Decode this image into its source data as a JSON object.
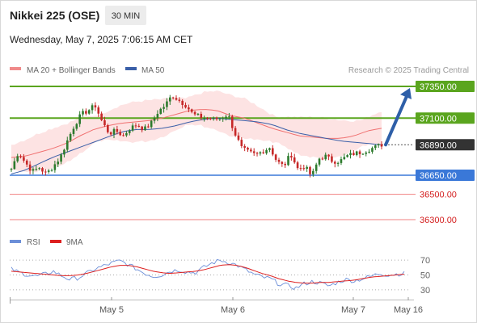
{
  "header": {
    "instrument": "Nikkei 225 (OSE)",
    "timeframe": "30 MIN",
    "datetime": "Wednesday, May 7, 2025 7:06:15 AM CET"
  },
  "legend": {
    "ma20_label": "MA 20 + Bollinger Bands",
    "ma50_label": "MA 50",
    "credit": "Research © 2025 Trading Central"
  },
  "colors": {
    "up_candle": "#2d7a2d",
    "down_candle": "#c62828",
    "ma20": "#f07070",
    "ma50": "#3a5fa8",
    "bollinger_fill": "#fde3e3",
    "resistance": "#5aa51e",
    "pivot": "#3a78d8",
    "support": "#f08080",
    "last_price_tag": "#333333",
    "arrow": "#2e5fa8",
    "rsi": "#6c8fd8",
    "rsi_ma": "#dd1f1f"
  },
  "chart_data": [
    {
      "type": "candlestick",
      "title": "Nikkei 225 (OSE)",
      "interval": "30 MIN",
      "x_labels": [
        "May 5",
        "May 6",
        "May 7",
        "May 16"
      ],
      "y_range": [
        36150,
        37400
      ],
      "levels": [
        {
          "value": 37350,
          "label": "37350.00",
          "kind": "resistance"
        },
        {
          "value": 37100,
          "label": "37100.00",
          "kind": "resistance"
        },
        {
          "value": 36890,
          "label": "36890.00",
          "kind": "last"
        },
        {
          "value": 36650,
          "label": "36650.00",
          "kind": "pivot"
        },
        {
          "value": 36500,
          "label": "36500.00",
          "kind": "support"
        },
        {
          "value": 36300,
          "label": "36300.00",
          "kind": "support"
        }
      ],
      "price_path": [
        36700,
        36830,
        36750,
        36680,
        36710,
        36660,
        36720,
        36790,
        36920,
        37040,
        37130,
        37160,
        37200,
        37070,
        36980,
        37000,
        36960,
        37020,
        37050,
        37010,
        37060,
        37150,
        37200,
        37280,
        37240,
        37200,
        37130,
        37110,
        37100,
        37090,
        37100,
        37130,
        36980,
        36860,
        36830,
        36810,
        36840,
        36870,
        36760,
        36720,
        36820,
        36700,
        36720,
        36640,
        36780,
        36800,
        36760,
        36760,
        36800,
        36820,
        36830,
        36850,
        36870,
        36890
      ],
      "ma20_path": [
        36790,
        36800,
        36830,
        36860,
        36900,
        36960,
        37010,
        37040,
        37060,
        37070,
        37080,
        37100,
        37130,
        37160,
        37170,
        37160,
        37120,
        37100,
        37060,
        37020,
        36990,
        36960,
        36950,
        36940,
        36940,
        36960,
        37000,
        37020
      ],
      "ma50_path": [
        36660,
        36690,
        36740,
        36790,
        36830,
        36870,
        36910,
        36950,
        36990,
        37010,
        37010,
        37020,
        37040,
        37070,
        37090,
        37100,
        37090,
        37080,
        37070,
        37050,
        37010,
        36980,
        36960,
        36940,
        36920,
        36910,
        36900,
        36890
      ]
    },
    {
      "type": "line",
      "title": "RSI",
      "series_names": [
        "RSI",
        "9MA"
      ],
      "y_ticks": [
        70,
        50,
        30
      ],
      "y_range": [
        20,
        80
      ],
      "rsi": [
        58,
        53,
        50,
        48,
        51,
        55,
        49,
        44,
        46,
        52,
        58,
        62,
        66,
        69,
        64,
        58,
        52,
        48,
        50,
        55,
        57,
        54,
        53,
        60,
        66,
        70,
        67,
        63,
        57,
        51,
        47,
        45,
        38,
        36,
        32,
        38,
        41,
        39,
        35,
        40,
        44,
        42,
        45,
        48,
        52,
        50,
        51,
        52
      ],
      "rsi_ma": [
        55,
        54,
        53,
        52,
        51,
        50,
        49,
        49,
        50,
        52,
        55,
        58,
        61,
        63,
        63,
        61,
        58,
        55,
        53,
        52,
        53,
        54,
        55,
        57,
        60,
        63,
        64,
        63,
        60,
        56,
        52,
        49,
        45,
        42,
        40,
        39,
        39,
        40,
        40,
        41,
        42,
        43,
        45,
        47,
        48,
        49,
        50,
        51
      ]
    }
  ]
}
